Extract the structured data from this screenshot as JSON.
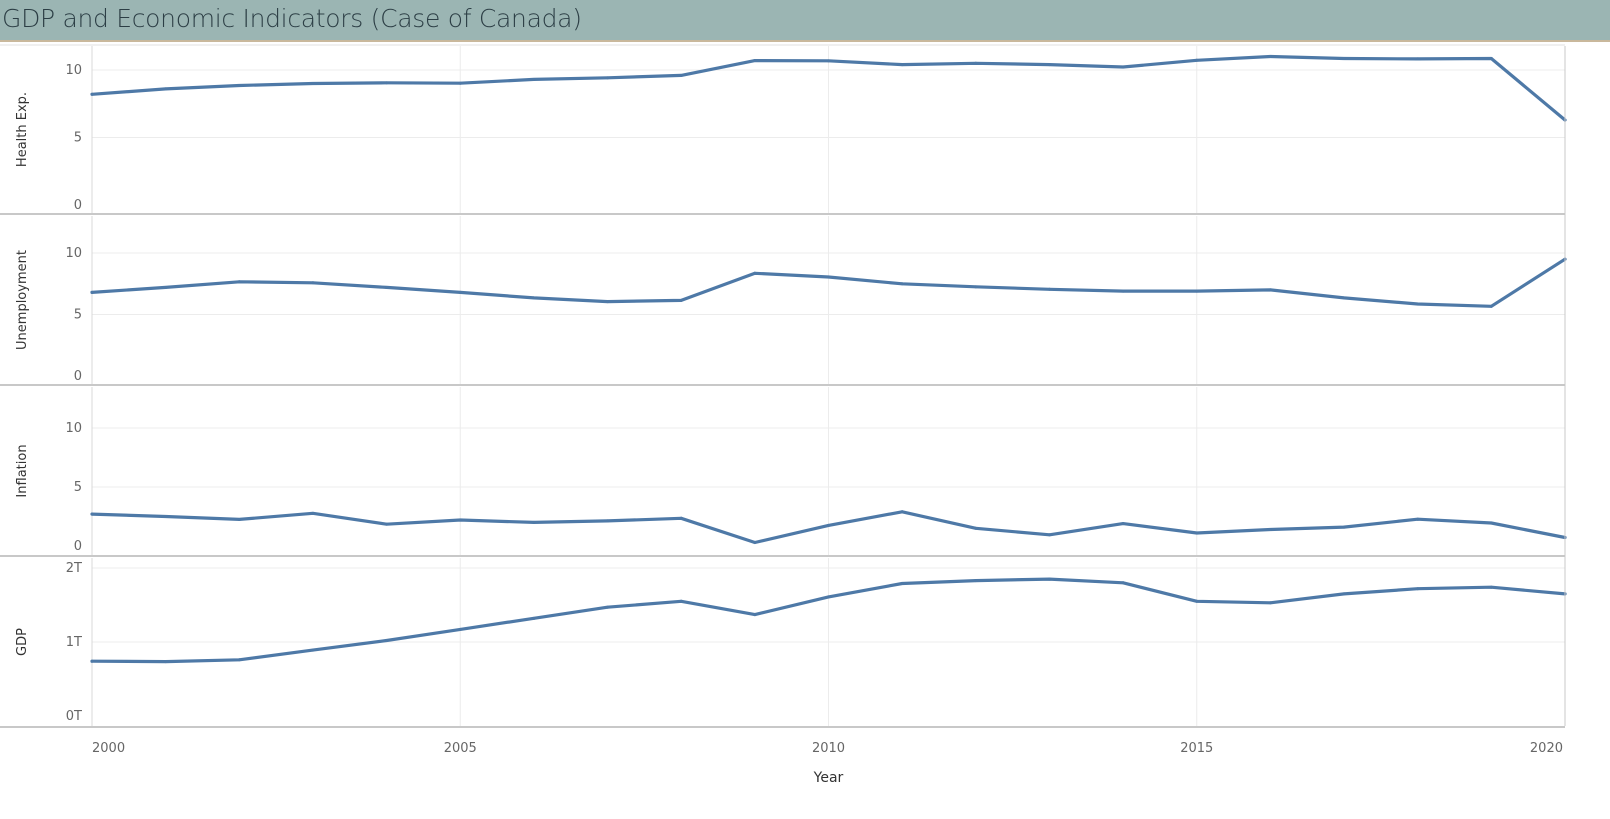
{
  "title": "GDP and Economic Indicators (Case of Canada)",
  "colors": {
    "line": "#4e79a7",
    "title_bar": "#9bb5b3",
    "gridline": "#ececec",
    "divider": "#c8c8c8"
  },
  "chart_data": {
    "type": "line",
    "xlabel": "Year",
    "x": [
      2000,
      2001,
      2002,
      2003,
      2004,
      2005,
      2006,
      2007,
      2008,
      2009,
      2010,
      2011,
      2012,
      2013,
      2014,
      2015,
      2016,
      2017,
      2018,
      2019,
      2020
    ],
    "x_ticks": [
      {
        "value": 2000,
        "label": "2000"
      },
      {
        "value": 2005,
        "label": "2005"
      },
      {
        "value": 2010,
        "label": "2010"
      },
      {
        "value": 2015,
        "label": "2015"
      },
      {
        "value": 2020,
        "label": "2020"
      }
    ],
    "xlim": [
      2000,
      2020
    ],
    "grid": true,
    "panels": [
      {
        "ylabel": "Health Exp.",
        "ylim": [
          0,
          12
        ],
        "y_ticks": [
          {
            "value": 0,
            "label": "0"
          },
          {
            "value": 5,
            "label": "5"
          },
          {
            "value": 10,
            "label": "10"
          }
        ],
        "values": [
          8.2,
          8.6,
          8.85,
          9.0,
          9.05,
          9.02,
          9.3,
          9.42,
          9.6,
          10.7,
          10.68,
          10.4,
          10.5,
          10.4,
          10.22,
          10.72,
          11.0,
          10.85,
          10.82,
          10.85,
          6.3
        ]
      },
      {
        "ylabel": "Unemployment",
        "ylim": [
          0,
          12
        ],
        "y_ticks": [
          {
            "value": 0,
            "label": "0"
          },
          {
            "value": 5,
            "label": "5"
          },
          {
            "value": 10,
            "label": "10"
          }
        ],
        "values": [
          6.8,
          7.2,
          7.66,
          7.58,
          7.2,
          6.8,
          6.35,
          6.05,
          6.15,
          8.35,
          8.05,
          7.5,
          7.25,
          7.05,
          6.9,
          6.9,
          7.0,
          6.35,
          5.85,
          5.67,
          9.5
        ]
      },
      {
        "ylabel": "Inflation",
        "ylim": [
          0,
          12
        ],
        "y_ticks": [
          {
            "value": 0,
            "label": "0"
          },
          {
            "value": 5,
            "label": "5"
          },
          {
            "value": 10,
            "label": "10"
          }
        ],
        "values": [
          2.7,
          2.5,
          2.25,
          2.77,
          1.85,
          2.2,
          2.0,
          2.13,
          2.35,
          0.3,
          1.75,
          2.9,
          1.5,
          0.95,
          1.9,
          1.1,
          1.4,
          1.6,
          2.27,
          1.95,
          0.72
        ]
      },
      {
        "ylabel": "GDP",
        "ylim": [
          0,
          2.05
        ],
        "y_ticks": [
          {
            "value": 0,
            "label": "0T"
          },
          {
            "value": 1,
            "label": "1T"
          },
          {
            "value": 2,
            "label": "2T"
          }
        ],
        "values": [
          0.74,
          0.735,
          0.76,
          0.89,
          1.02,
          1.17,
          1.32,
          1.47,
          1.55,
          1.37,
          1.61,
          1.79,
          1.83,
          1.85,
          1.8,
          1.55,
          1.53,
          1.65,
          1.72,
          1.74,
          1.65
        ]
      }
    ]
  }
}
